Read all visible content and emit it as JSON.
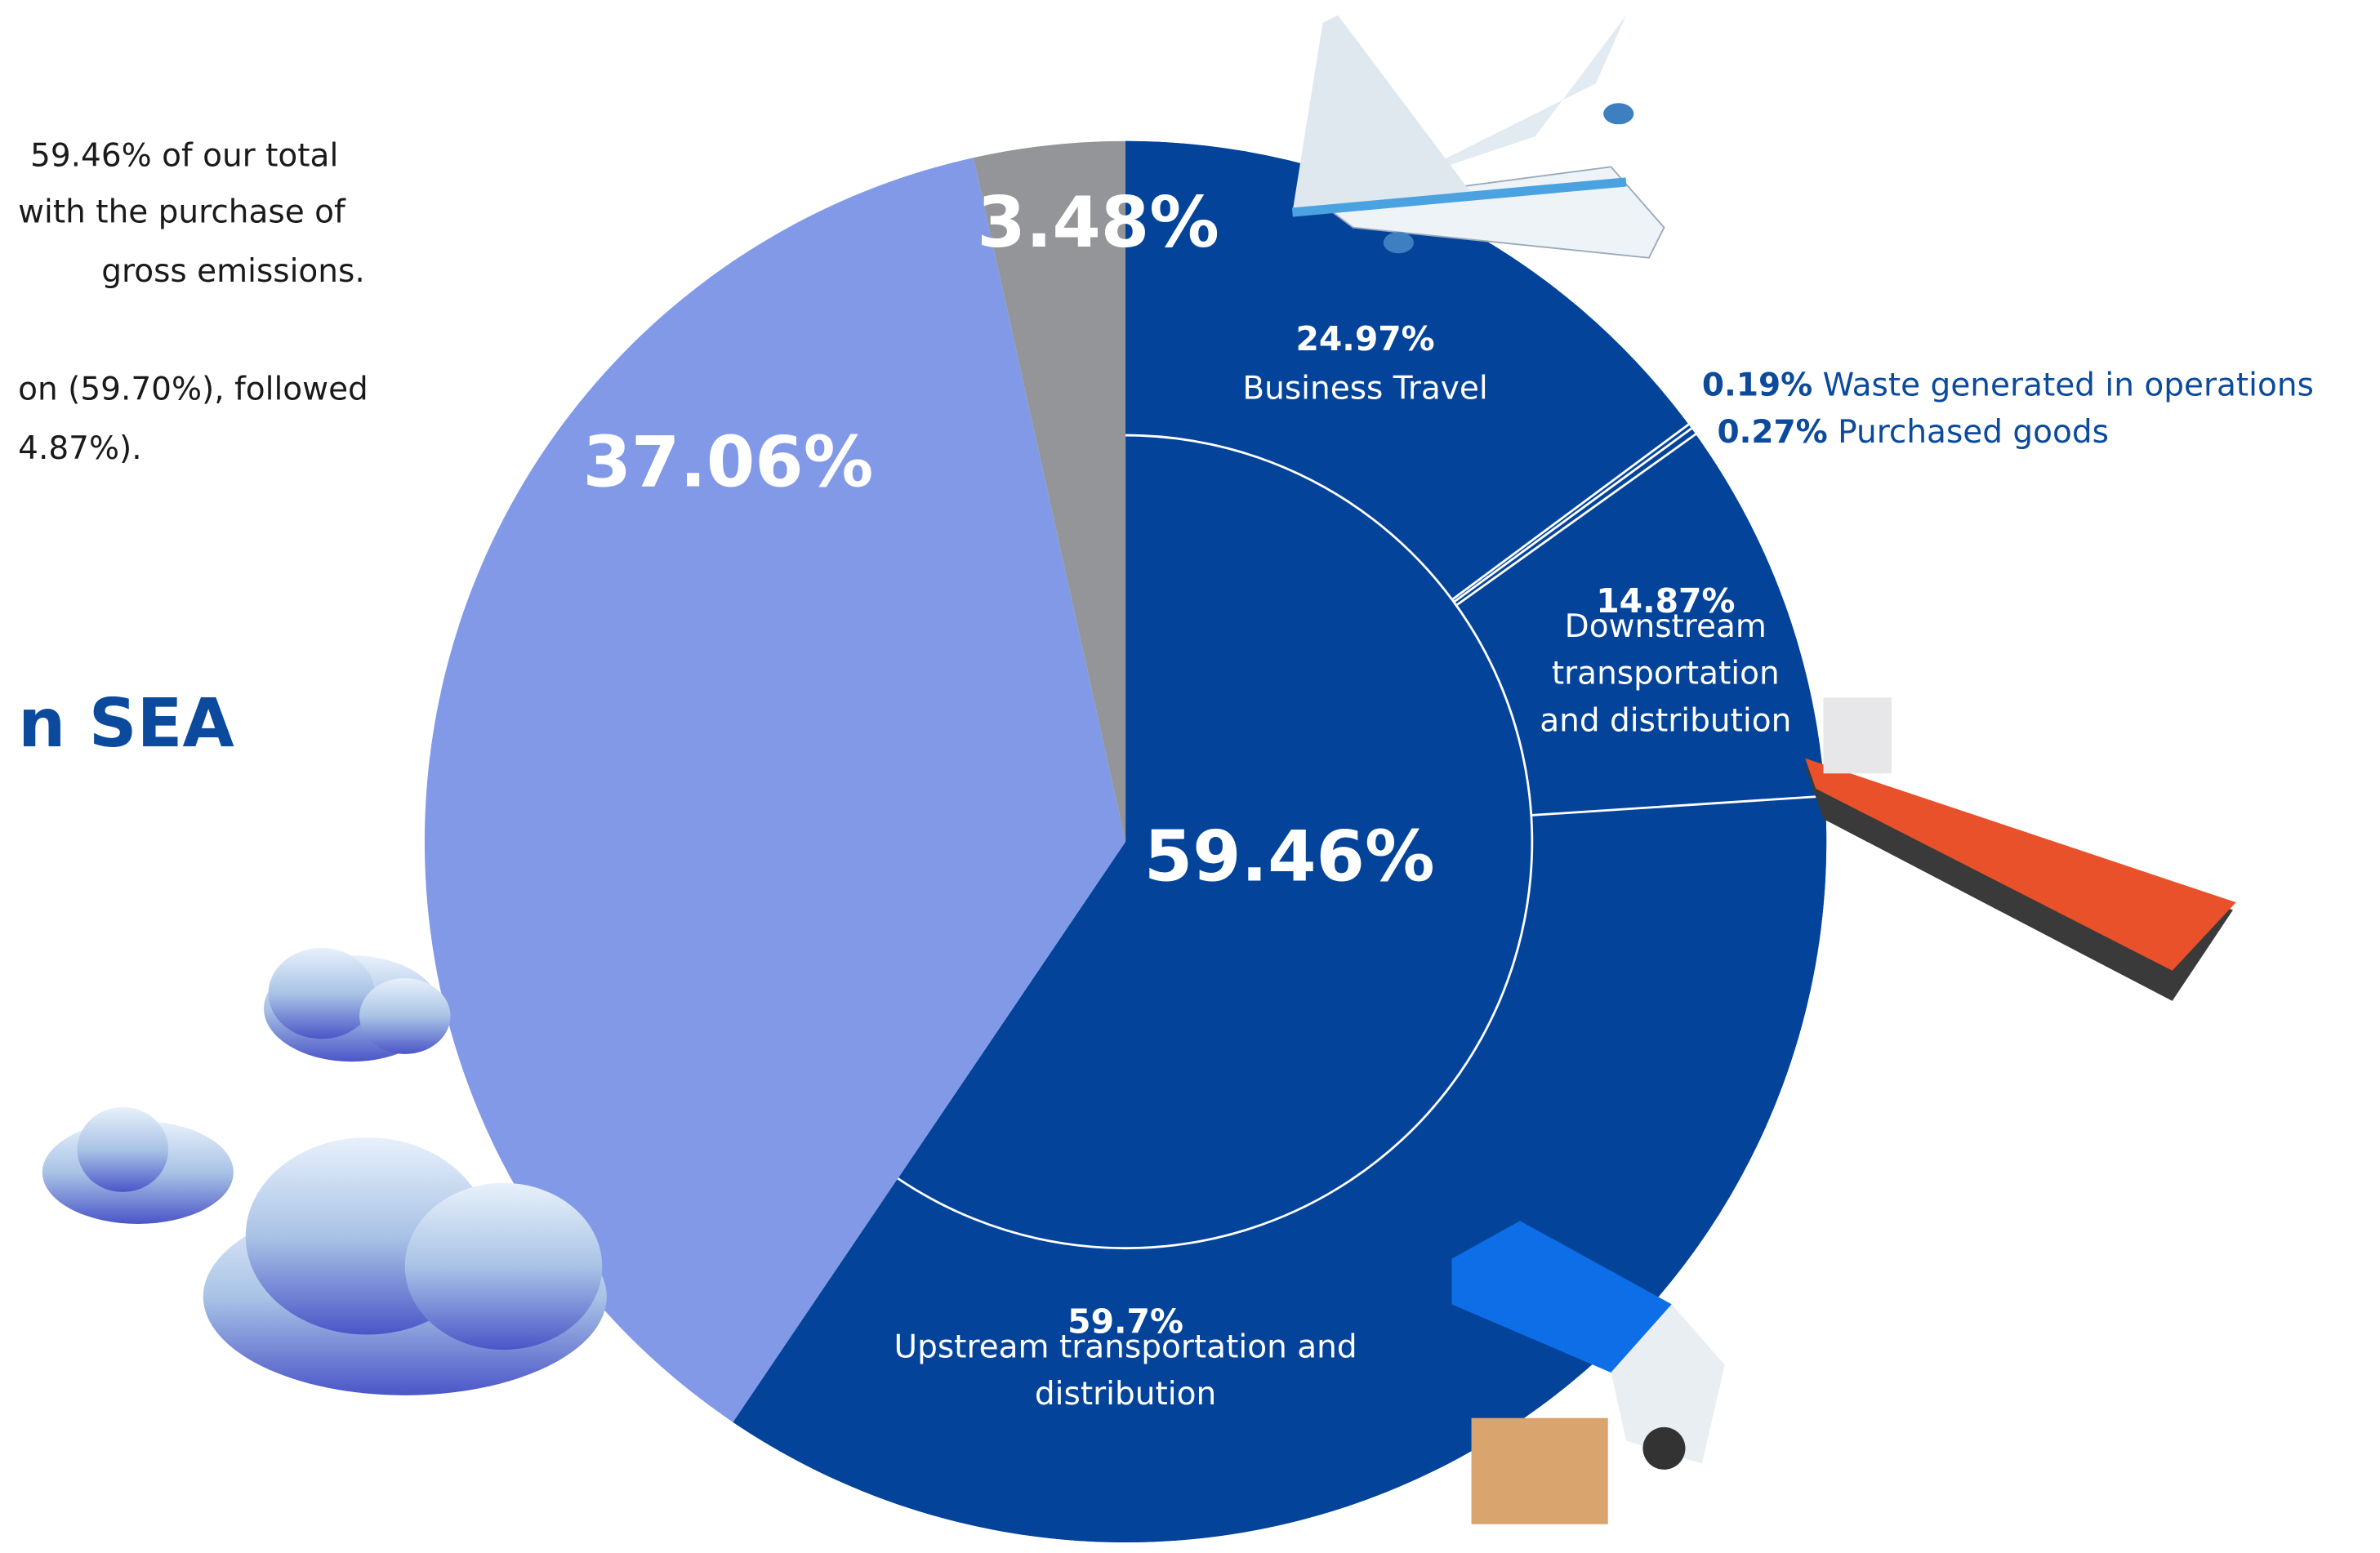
{
  "intro": {
    "lines": [
      "59.46% of our total",
      "with the purchase of",
      "gross emissions.",
      "on (59.70%), followed",
      "4.87%)."
    ],
    "heading": "n SEA"
  },
  "chart_data": {
    "type": "pie",
    "values": [
      59.46,
      37.06,
      3.48
    ],
    "value_labels": [
      "59.46%",
      "37.06%",
      "3.48%"
    ],
    "colors": [
      "#03449a",
      "#8299e8",
      "#939598"
    ],
    "breakdown": {
      "categories": [
        "Business Travel",
        "Waste generated in operations",
        "Purchased goods",
        "Downstream transportation and distribution",
        "Upstream transportation and distribution"
      ],
      "values": [
        24.97,
        0.19,
        0.27,
        14.87,
        59.7
      ],
      "value_labels": [
        "24.97%",
        "0.19%",
        "0.27%",
        "14.87%",
        "59.7%"
      ]
    }
  }
}
